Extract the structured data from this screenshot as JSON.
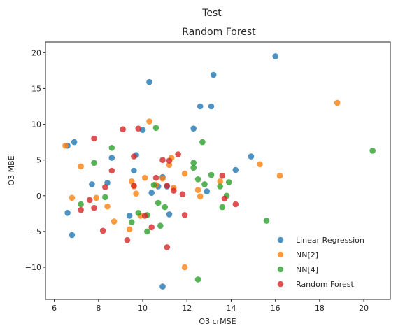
{
  "figure": {
    "suptitle": "Test"
  },
  "chart_data": {
    "type": "scatter",
    "title": "Random Forest",
    "xlabel": "O3 crMSE",
    "ylabel": "O3 MBE",
    "xlim": [
      5.6,
      21.2
    ],
    "ylim": [
      -14.5,
      21.5
    ],
    "xticks": [
      6,
      8,
      10,
      12,
      14,
      16,
      18,
      20
    ],
    "yticks": [
      -10,
      -5,
      0,
      5,
      10,
      15,
      20
    ],
    "xtick_labels": [
      "6",
      "8",
      "10",
      "12",
      "14",
      "16",
      "18",
      "20"
    ],
    "ytick_labels": [
      "−10",
      "−5",
      "0",
      "5",
      "10",
      "15",
      "20"
    ],
    "grid": false,
    "legend": "bottom-right",
    "series": [
      {
        "name": "Linear Regression",
        "color": "#1f77b4",
        "points": [
          [
            6.6,
            7.0
          ],
          [
            6.9,
            7.5
          ],
          [
            6.6,
            -2.4
          ],
          [
            6.8,
            -5.5
          ],
          [
            7.7,
            1.6
          ],
          [
            8.4,
            1.8
          ],
          [
            8.6,
            5.3
          ],
          [
            9.4,
            -2.8
          ],
          [
            9.6,
            3.5
          ],
          [
            9.7,
            5.7
          ],
          [
            10.0,
            9.2
          ],
          [
            10.3,
            15.9
          ],
          [
            10.4,
            0.4
          ],
          [
            10.9,
            2.6
          ],
          [
            10.9,
            -12.7
          ],
          [
            11.2,
            -2.6
          ],
          [
            11.1,
            1.3
          ],
          [
            10.7,
            1.3
          ],
          [
            12.3,
            9.4
          ],
          [
            12.6,
            12.5
          ],
          [
            13.1,
            12.5
          ],
          [
            13.2,
            16.9
          ],
          [
            12.9,
            0.6
          ],
          [
            14.9,
            5.5
          ],
          [
            14.2,
            3.6
          ],
          [
            16.0,
            19.5
          ]
        ]
      },
      {
        "name": "NN[2]",
        "color": "#ff7f0e",
        "points": [
          [
            6.5,
            7.0
          ],
          [
            6.8,
            -0.3
          ],
          [
            7.2,
            4.1
          ],
          [
            7.9,
            -0.3
          ],
          [
            8.4,
            -1.5
          ],
          [
            8.7,
            -3.6
          ],
          [
            9.4,
            -4.7
          ],
          [
            9.5,
            2.0
          ],
          [
            9.6,
            1.3
          ],
          [
            9.7,
            0.3
          ],
          [
            9.9,
            -2.8
          ],
          [
            10.1,
            2.5
          ],
          [
            10.3,
            10.4
          ],
          [
            10.6,
            1.5
          ],
          [
            10.9,
            2.4
          ],
          [
            11.2,
            4.3
          ],
          [
            11.3,
            5.3
          ],
          [
            11.4,
            1.1
          ],
          [
            11.9,
            3.1
          ],
          [
            11.9,
            -10.0
          ],
          [
            12.5,
            0.8
          ],
          [
            12.6,
            -0.1
          ],
          [
            13.5,
            2.0
          ],
          [
            15.3,
            4.4
          ],
          [
            16.2,
            2.8
          ],
          [
            18.8,
            13.0
          ]
        ]
      },
      {
        "name": "NN[4]",
        "color": "#2ca02c",
        "points": [
          [
            7.2,
            -1.2
          ],
          [
            7.8,
            4.6
          ],
          [
            8.3,
            -0.2
          ],
          [
            8.6,
            6.7
          ],
          [
            9.5,
            -3.7
          ],
          [
            9.8,
            -2.4
          ],
          [
            10.2,
            -5.0
          ],
          [
            10.2,
            -2.7
          ],
          [
            10.5,
            1.5
          ],
          [
            10.6,
            9.5
          ],
          [
            10.7,
            -1.0
          ],
          [
            10.8,
            -4.2
          ],
          [
            11.0,
            -1.6
          ],
          [
            12.3,
            4.6
          ],
          [
            12.3,
            3.9
          ],
          [
            12.5,
            2.3
          ],
          [
            12.7,
            7.5
          ],
          [
            12.8,
            1.6
          ],
          [
            13.1,
            2.9
          ],
          [
            13.5,
            1.3
          ],
          [
            13.6,
            -1.6
          ],
          [
            13.8,
            0.0
          ],
          [
            13.9,
            1.9
          ],
          [
            12.5,
            -11.7
          ],
          [
            15.6,
            -3.5
          ],
          [
            20.4,
            6.3
          ]
        ]
      },
      {
        "name": "Random Forest",
        "color": "#d62728",
        "points": [
          [
            7.2,
            -2.0
          ],
          [
            7.6,
            -0.6
          ],
          [
            7.8,
            -1.7
          ],
          [
            7.8,
            8.0
          ],
          [
            8.2,
            -4.9
          ],
          [
            8.3,
            1.2
          ],
          [
            8.6,
            3.5
          ],
          [
            9.1,
            9.3
          ],
          [
            9.3,
            -6.2
          ],
          [
            9.6,
            1.4
          ],
          [
            9.6,
            5.5
          ],
          [
            9.8,
            9.4
          ],
          [
            10.1,
            -2.8
          ],
          [
            10.4,
            -4.4
          ],
          [
            10.6,
            2.5
          ],
          [
            10.9,
            5.0
          ],
          [
            11.1,
            1.4
          ],
          [
            11.1,
            -7.2
          ],
          [
            11.4,
            0.7
          ],
          [
            11.6,
            5.8
          ],
          [
            11.8,
            0.2
          ],
          [
            11.9,
            -2.7
          ],
          [
            11.2,
            4.9
          ],
          [
            13.6,
            2.8
          ],
          [
            13.7,
            -0.4
          ],
          [
            14.2,
            -1.2
          ]
        ]
      }
    ]
  }
}
